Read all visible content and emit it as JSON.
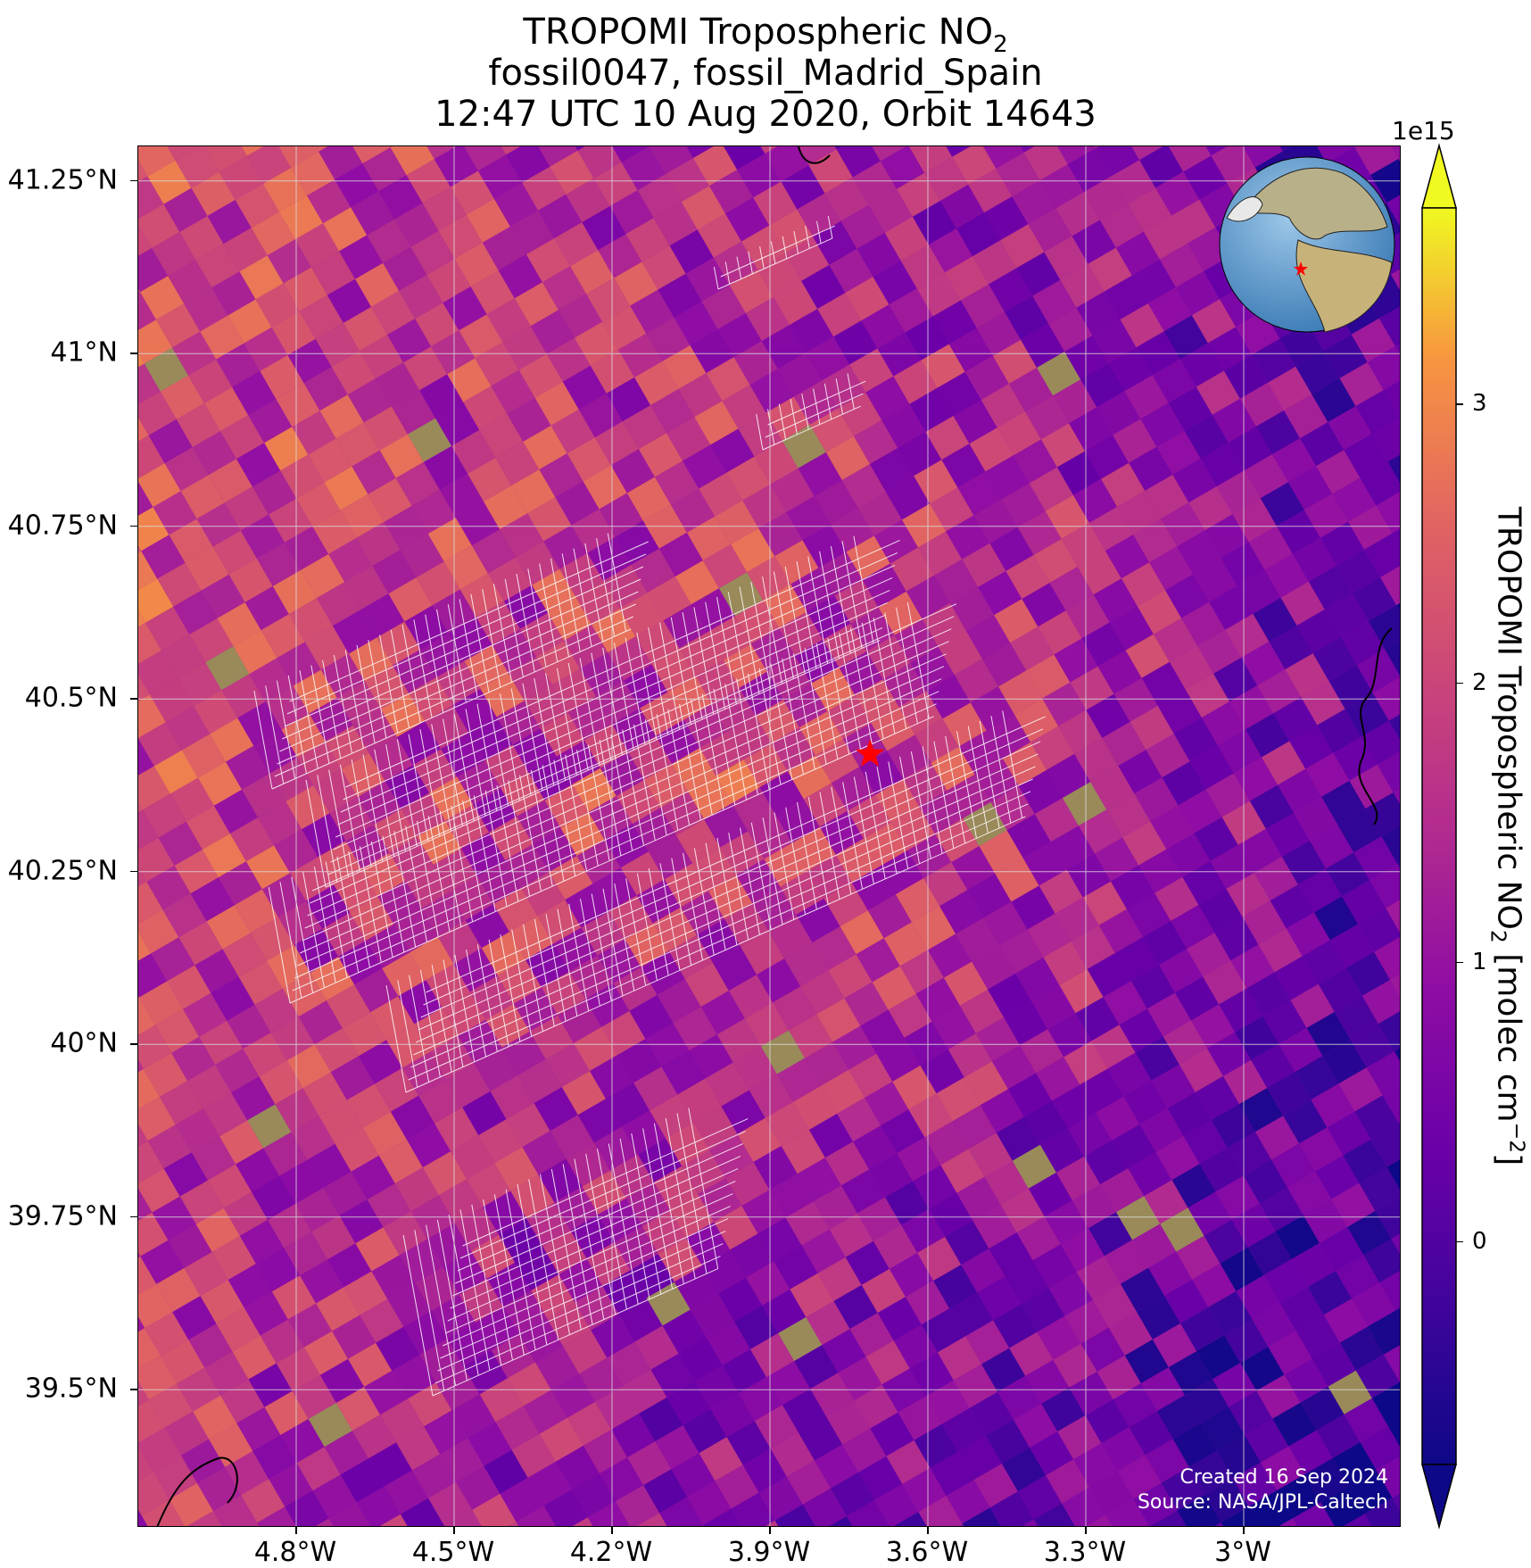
{
  "title": {
    "line1_text": "TROPOMI Tropospheric NO",
    "line1_sub": "2",
    "line2": "fossil0047, fossil_Madrid_Spain",
    "line3": "12:47 UTC 10 Aug 2020, Orbit 14643"
  },
  "map": {
    "lat_ticks": [
      "41.25°N",
      "41°N",
      "40.75°N",
      "40.5°N",
      "40.25°N",
      "40°N",
      "39.75°N",
      "39.5°N"
    ],
    "lon_ticks": [
      "4.8°W",
      "4.5°W",
      "4.2°W",
      "3.9°W",
      "3.6°W",
      "3.3°W",
      "3°W"
    ],
    "extent": {
      "lon_min": -5.1,
      "lon_max": -2.7,
      "lat_min": 39.3,
      "lat_max": 41.3
    },
    "target_marker": {
      "name": "fossil_Madrid_Spain",
      "lon": -3.71,
      "lat": 40.42,
      "symbol": "star",
      "color": "#ff0000"
    },
    "credit_line1": "Created 16 Sep 2024",
    "credit_line2": "Source: NASA/JPL-Caltech"
  },
  "colorbar": {
    "multiplier": "1e15",
    "title_text": "TROPOMI Tropospheric NO",
    "title_sub": "2",
    "title_units_pre": " [molec cm",
    "title_sup": "−2",
    "title_units_post": "]",
    "colormap": "plasma",
    "range": [
      -0.8,
      3.7
    ],
    "extend": "both",
    "ticks": [
      {
        "value": 0,
        "label": "0"
      },
      {
        "value": 1,
        "label": "1"
      },
      {
        "value": 2,
        "label": "2"
      },
      {
        "value": 3,
        "label": "3"
      }
    ]
  }
}
